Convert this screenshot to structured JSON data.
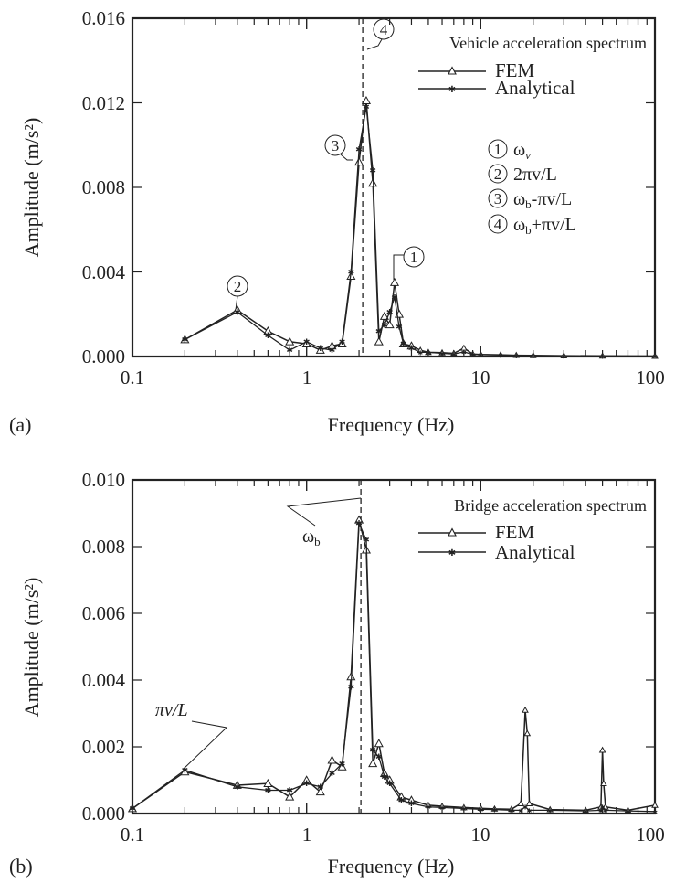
{
  "chart_data": [
    {
      "panel": "(a)",
      "type": "line",
      "xlabel": "Frequency (Hz)",
      "ylabel": "Amplitude (m/s²)",
      "xscale": "log",
      "xlim": [
        0.1,
        100
      ],
      "ylim": [
        0,
        0.016
      ],
      "xticks": [
        "0.1",
        "1",
        "10",
        "100"
      ],
      "yticks": [
        "0.000",
        "0.004",
        "0.008",
        "0.012",
        "0.016"
      ],
      "legend_title": "Vehicle acceleration spectrum",
      "legend_position": "top-right",
      "vline_x": 2.1,
      "series": [
        {
          "name": "FEM",
          "marker": "triangle",
          "points": [
            [
              0.2,
              0.0008
            ],
            [
              0.4,
              0.0022
            ],
            [
              0.6,
              0.0012
            ],
            [
              0.8,
              0.0007
            ],
            [
              1.0,
              0.0006
            ],
            [
              1.2,
              0.0003
            ],
            [
              1.4,
              0.0005
            ],
            [
              1.6,
              0.0006
            ],
            [
              1.8,
              0.0038
            ],
            [
              2.0,
              0.0092
            ],
            [
              2.2,
              0.0121
            ],
            [
              2.4,
              0.0082
            ],
            [
              2.6,
              0.0007
            ],
            [
              2.8,
              0.0019
            ],
            [
              3.0,
              0.0015
            ],
            [
              3.2,
              0.0035
            ],
            [
              3.4,
              0.002
            ],
            [
              3.6,
              0.0006
            ],
            [
              4.0,
              0.0005
            ],
            [
              4.5,
              0.0003
            ],
            [
              5,
              0.0002
            ],
            [
              6,
              0.00018
            ],
            [
              7,
              0.00015
            ],
            [
              8,
              0.0004
            ],
            [
              9,
              0.00012
            ],
            [
              10,
              0.0001
            ],
            [
              13,
              8e-05
            ],
            [
              16,
              6e-05
            ],
            [
              20,
              5e-05
            ],
            [
              30,
              4e-05
            ],
            [
              50,
              3e-05
            ],
            [
              100,
              2e-05
            ]
          ]
        },
        {
          "name": "Analytical",
          "marker": "star",
          "points": [
            [
              0.2,
              0.0008
            ],
            [
              0.4,
              0.0021
            ],
            [
              0.6,
              0.001
            ],
            [
              0.8,
              0.0003
            ],
            [
              1.0,
              0.0007
            ],
            [
              1.2,
              0.0004
            ],
            [
              1.4,
              0.0003
            ],
            [
              1.6,
              0.0007
            ],
            [
              1.8,
              0.004
            ],
            [
              2.0,
              0.0098
            ],
            [
              2.2,
              0.0118
            ],
            [
              2.4,
              0.0088
            ],
            [
              2.6,
              0.0012
            ],
            [
              2.8,
              0.0015
            ],
            [
              3.0,
              0.0021
            ],
            [
              3.2,
              0.0028
            ],
            [
              3.4,
              0.0014
            ],
            [
              3.6,
              0.0006
            ],
            [
              4.0,
              0.0004
            ],
            [
              4.5,
              0.0002
            ],
            [
              5,
              0.0002
            ],
            [
              6,
              0.00015
            ],
            [
              7,
              0.00012
            ],
            [
              8,
              0.00022
            ],
            [
              9,
              0.0001
            ],
            [
              10,
              9e-05
            ],
            [
              13,
              7e-05
            ],
            [
              16,
              5e-05
            ],
            [
              20,
              4e-05
            ],
            [
              30,
              3e-05
            ],
            [
              50,
              2e-05
            ],
            [
              100,
              2e-05
            ]
          ]
        }
      ],
      "annotations": [
        {
          "symbol": "1",
          "text": "ω",
          "sub": "v",
          "x": 3.2,
          "y": 0.0035
        },
        {
          "symbol": "2",
          "text": "2πv/L",
          "x": 0.4,
          "y": 0.0022
        },
        {
          "symbol": "3",
          "text": "ω",
          "sub": "b",
          "tail": "-πv/L",
          "x": 2.0,
          "y": 0.0092
        },
        {
          "symbol": "4",
          "text": "ω",
          "sub": "b",
          "tail": "+πv/L",
          "x": 2.2,
          "y": 0.0121
        }
      ]
    },
    {
      "panel": "(b)",
      "type": "line",
      "xlabel": "Frequency (Hz)",
      "ylabel": "Amplitude (m/s²)",
      "xscale": "log",
      "xlim": [
        0.1,
        100
      ],
      "ylim": [
        0,
        0.01
      ],
      "xticks": [
        "0.1",
        "1",
        "10",
        "100"
      ],
      "yticks": [
        "0.000",
        "0.002",
        "0.004",
        "0.006",
        "0.008",
        "0.010"
      ],
      "legend_title": "Bridge acceleration spectrum",
      "legend_position": "top-right",
      "vline_x": 2.05,
      "series": [
        {
          "name": "FEM",
          "marker": "triangle",
          "points": [
            [
              0.1,
              0.00015
            ],
            [
              0.2,
              0.00125
            ],
            [
              0.4,
              0.00085
            ],
            [
              0.6,
              0.0009
            ],
            [
              0.8,
              0.0005
            ],
            [
              1.0,
              0.001
            ],
            [
              1.2,
              0.00065
            ],
            [
              1.4,
              0.0016
            ],
            [
              1.6,
              0.0014
            ],
            [
              1.8,
              0.0041
            ],
            [
              2.0,
              0.0088
            ],
            [
              2.2,
              0.0079
            ],
            [
              2.4,
              0.0015
            ],
            [
              2.6,
              0.0021
            ],
            [
              2.8,
              0.0012
            ],
            [
              3.0,
              0.001
            ],
            [
              3.5,
              0.0005
            ],
            [
              4,
              0.0004
            ],
            [
              5,
              0.00025
            ],
            [
              6,
              0.00022
            ],
            [
              8,
              0.00018
            ],
            [
              10,
              0.00016
            ],
            [
              12,
              0.00014
            ],
            [
              15,
              0.00013
            ],
            [
              17,
              0.0003
            ],
            [
              18,
              0.0031
            ],
            [
              18.5,
              0.0024
            ],
            [
              19,
              0.0003
            ],
            [
              25,
              0.00012
            ],
            [
              40,
              0.0001
            ],
            [
              49,
              0.0002
            ],
            [
              50,
              0.0019
            ],
            [
              50.8,
              0.0009
            ],
            [
              52,
              0.0002
            ],
            [
              70,
              0.0001
            ],
            [
              100,
              0.00025
            ]
          ]
        },
        {
          "name": "Analytical",
          "marker": "star",
          "points": [
            [
              0.1,
              0.00015
            ],
            [
              0.2,
              0.0013
            ],
            [
              0.4,
              0.0008
            ],
            [
              0.6,
              0.0007
            ],
            [
              0.8,
              0.0007
            ],
            [
              1.0,
              0.0009
            ],
            [
              1.2,
              0.0008
            ],
            [
              1.4,
              0.0012
            ],
            [
              1.6,
              0.0015
            ],
            [
              1.8,
              0.0038
            ],
            [
              2.0,
              0.0087
            ],
            [
              2.2,
              0.0082
            ],
            [
              2.4,
              0.0019
            ],
            [
              2.6,
              0.0017
            ],
            [
              2.8,
              0.0011
            ],
            [
              3.0,
              0.0009
            ],
            [
              3.5,
              0.0004
            ],
            [
              4,
              0.0003
            ],
            [
              5,
              0.0002
            ],
            [
              6,
              0.00018
            ],
            [
              8,
              0.00015
            ],
            [
              10,
              0.00013
            ],
            [
              12,
              0.00012
            ],
            [
              15,
              0.0001
            ],
            [
              17,
              0.0001
            ],
            [
              18,
              0.0002
            ],
            [
              19,
              0.0001
            ],
            [
              25,
              0.0001
            ],
            [
              40,
              8e-05
            ],
            [
              49,
              0.0001
            ],
            [
              50,
              0.0002
            ],
            [
              52,
              0.0001
            ],
            [
              70,
              8e-05
            ],
            [
              100,
              6e-05
            ]
          ]
        }
      ],
      "annotations": [
        {
          "text": "ω",
          "sub": "b",
          "x": 2.0,
          "y": 0.0088
        },
        {
          "text": "πv/L",
          "x": 0.2,
          "y": 0.00125
        }
      ]
    }
  ],
  "ui": {
    "panel_a": {
      "panel_label": "(a)",
      "xlabel": "Frequency (Hz)",
      "ylabel": "Amplitude (m/s²)",
      "legend_title": "Vehicle acceleration spectrum",
      "legend_fem": "FEM",
      "legend_analytical": "Analytical",
      "yticks": [
        "0.000",
        "0.004",
        "0.008",
        "0.012",
        "0.016"
      ],
      "xticks": [
        "0.1",
        "1",
        "10",
        "100"
      ],
      "key_1_symbol": "1",
      "key_1_text": "ω",
      "key_1_sub": "v",
      "key_2_symbol": "2",
      "key_2_text": "2πv/L",
      "key_3_symbol": "3",
      "key_3_text": "ω",
      "key_3_sub": "b",
      "key_3_tail": "-πv/L",
      "key_4_symbol": "4",
      "key_4_text": "ω",
      "key_4_sub": "b",
      "key_4_tail": "+πv/L"
    },
    "panel_b": {
      "panel_label": "(b)",
      "xlabel": "Frequency (Hz)",
      "ylabel": "Amplitude (m/s²)",
      "legend_title": "Bridge acceleration spectrum",
      "legend_fem": "FEM",
      "legend_analytical": "Analytical",
      "yticks": [
        "0.000",
        "0.002",
        "0.004",
        "0.006",
        "0.008",
        "0.010"
      ],
      "xticks": [
        "0.1",
        "1",
        "10",
        "100"
      ],
      "omega_text": "ω",
      "omega_sub": "b",
      "pivl_text": "πv/L"
    },
    "colors": {
      "line": "#222222",
      "background": "#ffffff"
    }
  }
}
